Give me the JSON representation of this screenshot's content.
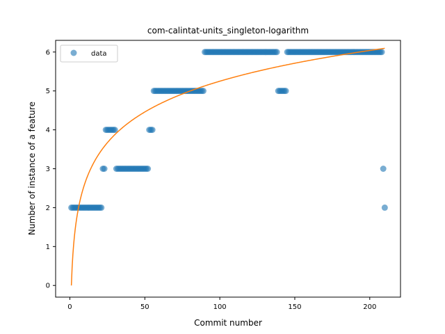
{
  "chart_data": {
    "type": "scatter",
    "title": "com-calintat-units_singleton-logarithm",
    "xlabel": "Commit number",
    "ylabel": "Number of instance of a feature",
    "xlim": [
      -9.5,
      220.5
    ],
    "ylim": [
      -0.3,
      6.3
    ],
    "xticks": [
      0,
      50,
      100,
      150,
      200
    ],
    "yticks": [
      0,
      1,
      2,
      3,
      4,
      5,
      6
    ],
    "grid": false,
    "legend_position": "top-left",
    "series": [
      {
        "name": "data",
        "kind": "scatter",
        "color": "#1f77b4",
        "alpha": 0.6,
        "runs": [
          {
            "from": 1,
            "to": 21,
            "y": 2
          },
          {
            "from": 22,
            "to": 23,
            "y": 3
          },
          {
            "from": 24,
            "to": 30,
            "y": 4
          },
          {
            "from": 31,
            "to": 52,
            "y": 3
          },
          {
            "from": 53,
            "to": 55,
            "y": 4
          },
          {
            "from": 56,
            "to": 89,
            "y": 5
          },
          {
            "from": 90,
            "to": 138,
            "y": 6
          },
          {
            "from": 139,
            "to": 144,
            "y": 5
          },
          {
            "from": 145,
            "to": 208,
            "y": 6
          },
          {
            "from": 209,
            "to": 209,
            "y": 3
          },
          {
            "from": 210,
            "to": 210,
            "y": 2
          }
        ]
      },
      {
        "kind": "line",
        "color": "#ff7f0e",
        "model": "logarithmic",
        "coefficients": {
          "a": 1.14,
          "b": 0.0
        },
        "x_range": [
          1,
          210
        ]
      }
    ]
  }
}
